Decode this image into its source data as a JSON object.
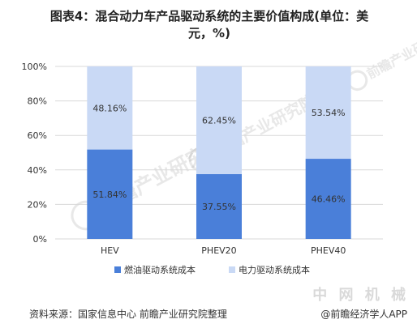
{
  "header": {
    "title_line1": "图表4：混合动力车产品驱动系统的主要价值构成(单位：美",
    "title_line2": "元，%)"
  },
  "footer": {
    "source": "资料来源：国家信息中心 前瞻产业研究院整理",
    "credit": "@前瞻经济学人APP"
  },
  "watermark": {
    "logo_text": "前瞻产业研究院",
    "corner_text": "中 网 机 械"
  },
  "colors": {
    "fuel": "#4a7fd9",
    "electric": "#c9d9f5",
    "grid": "#d9d9d9",
    "text": "#333333"
  },
  "chart_data": {
    "type": "bar",
    "stacked": true,
    "categories": [
      "HEV",
      "PHEV20",
      "PHEV40"
    ],
    "series": [
      {
        "name": "燃油驱动系统成本",
        "values": [
          51.84,
          37.55,
          46.46
        ],
        "labels": [
          "51.84%",
          "37.55%",
          "46.46%"
        ],
        "color": "#4a7fd9"
      },
      {
        "name": "电力驱动系统成本",
        "values": [
          48.16,
          62.45,
          53.54
        ],
        "labels": [
          "48.16%",
          "62.45%",
          "53.54%"
        ],
        "color": "#c9d9f5"
      }
    ],
    "ylim": [
      0,
      100
    ],
    "yticks": [
      0,
      20,
      40,
      60,
      80,
      100
    ],
    "ytick_labels": [
      "0%",
      "20%",
      "40%",
      "60%",
      "80%",
      "100%"
    ],
    "grid": true,
    "legend": "bottom",
    "title": "图表4：混合动力车产品驱动系统的主要价值构成(单位：美元，%)"
  }
}
